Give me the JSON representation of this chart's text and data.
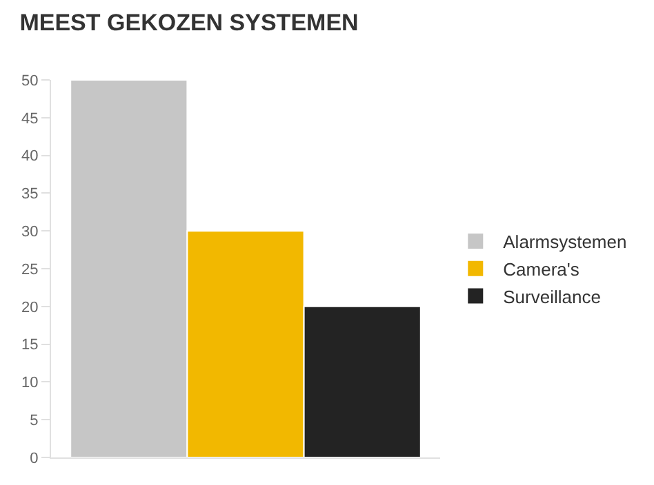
{
  "chart_data": {
    "type": "bar",
    "title": "MEEST GEKOZEN SYSTEMEN",
    "categories": [
      null
    ],
    "series": [
      {
        "name": "Alarmsystemen",
        "color": "#c6c6c6",
        "values": [
          50
        ]
      },
      {
        "name": "Camera's",
        "color": "#f2b800",
        "values": [
          30
        ]
      },
      {
        "name": "Surveillance",
        "color": "#232323",
        "values": [
          20
        ]
      }
    ],
    "ylim": [
      0,
      50
    ],
    "yticks": [
      0,
      5,
      10,
      15,
      20,
      25,
      30,
      35,
      40,
      45,
      50
    ],
    "grid": false,
    "legend": "right"
  }
}
